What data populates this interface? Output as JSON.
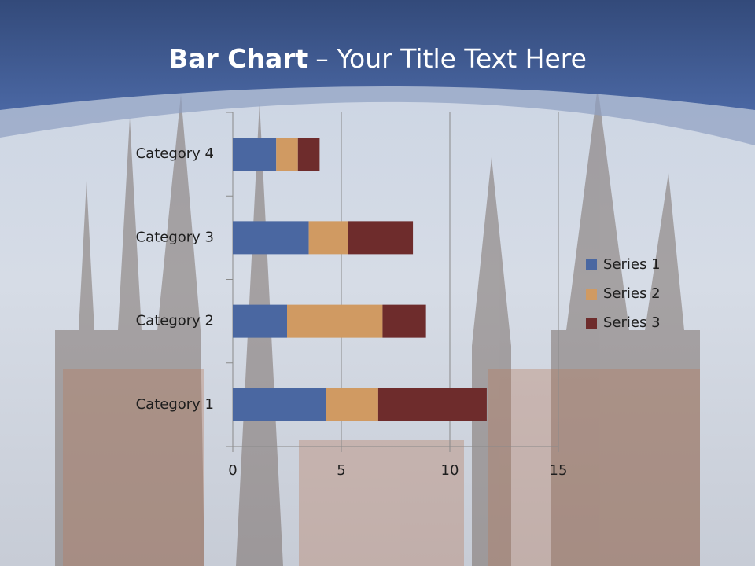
{
  "chart_data": {
    "type": "bar",
    "orientation": "horizontal",
    "stacked": true,
    "title": [
      "Bar Chart",
      "– Your Title Text Here"
    ],
    "categories": [
      "Category 1",
      "Category 2",
      "Category 3",
      "Category 4"
    ],
    "series": [
      {
        "name": "Series 1",
        "color": "#4a67a1",
        "values": [
          4.3,
          2.5,
          3.5,
          2
        ]
      },
      {
        "name": "Series 2",
        "color": "#d09a62",
        "values": [
          2.4,
          4.4,
          1.8,
          1
        ]
      },
      {
        "name": "Series 3",
        "color": "#6e2c2c",
        "values": [
          5,
          2,
          3,
          1
        ]
      }
    ],
    "xlim": [
      0,
      15
    ],
    "xticks": [
      0,
      5,
      10,
      15
    ],
    "grid": true,
    "legend": "right"
  }
}
